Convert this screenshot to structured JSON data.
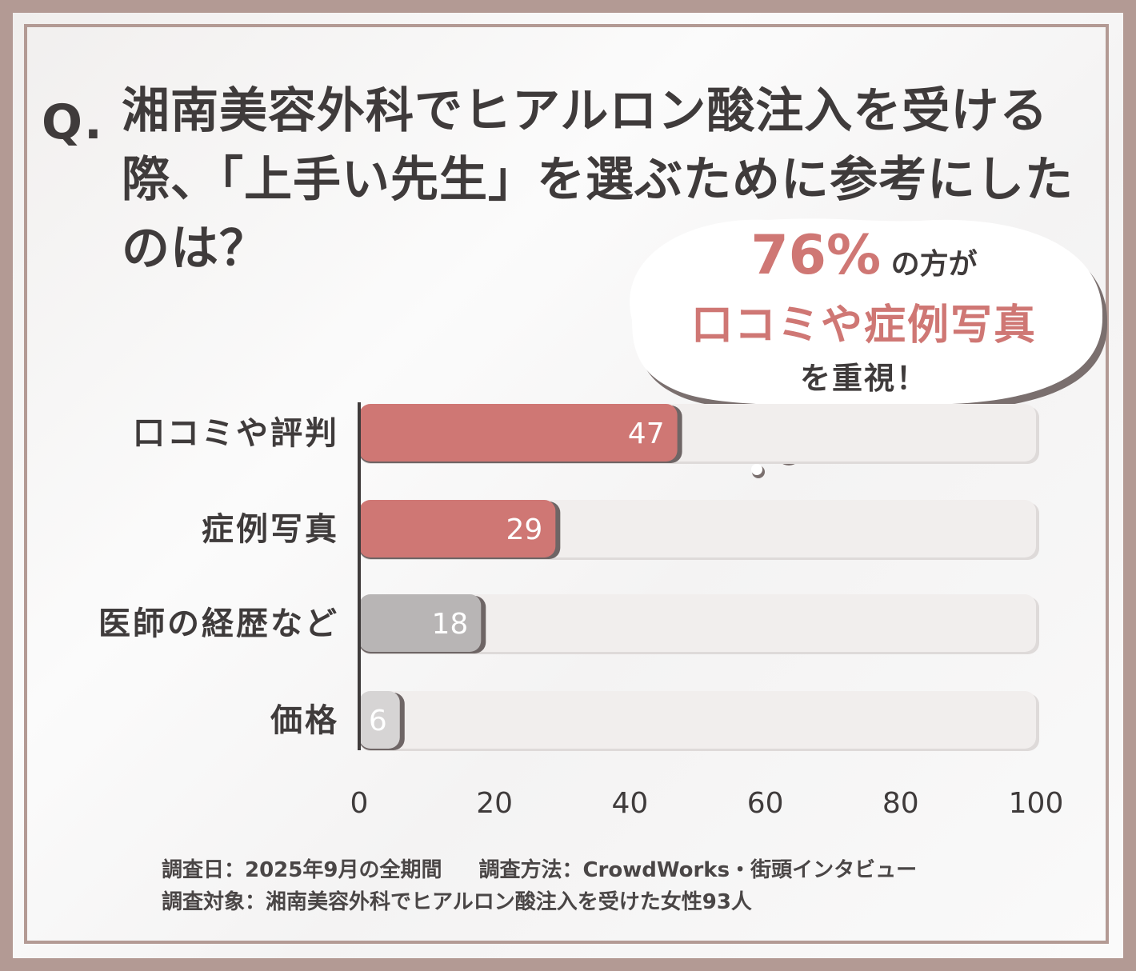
{
  "question": {
    "mark": "Q.",
    "lines": [
      "湘南美容外科でヒアルロン酸注入を受ける",
      "際、「上手い先生」を選ぶために参考にした",
      "のは？"
    ]
  },
  "callout": {
    "percent": "76%",
    "suffix": "の方が",
    "highlight": "口コミや症例写真",
    "tail": "を重視！"
  },
  "chart_data": {
    "type": "bar",
    "orientation": "horizontal",
    "categories": [
      "口コミや評判",
      "症例写真",
      "医師の経歴など",
      "価格"
    ],
    "values": [
      47,
      29,
      18,
      6
    ],
    "xlim": [
      0,
      100
    ],
    "xticks": [
      "0",
      "20",
      "40",
      "60",
      "80",
      "100"
    ],
    "colors": [
      "#cf7774",
      "#cf7774",
      "#b8b5b5",
      "#d6d4d4"
    ],
    "track_color": "#f1eeed",
    "grid": false
  },
  "footer": {
    "date": "調査日：2025年9月の全期間",
    "method": "調査方法：CrowdWorks・街頭インタビュー",
    "target": "調査対象：湘南美容外科でヒアルロン酸注入を受けた女性93人"
  },
  "colors": {
    "frame": "#b39a94",
    "text": "#3f3b3b",
    "accent": "#cf7774"
  }
}
